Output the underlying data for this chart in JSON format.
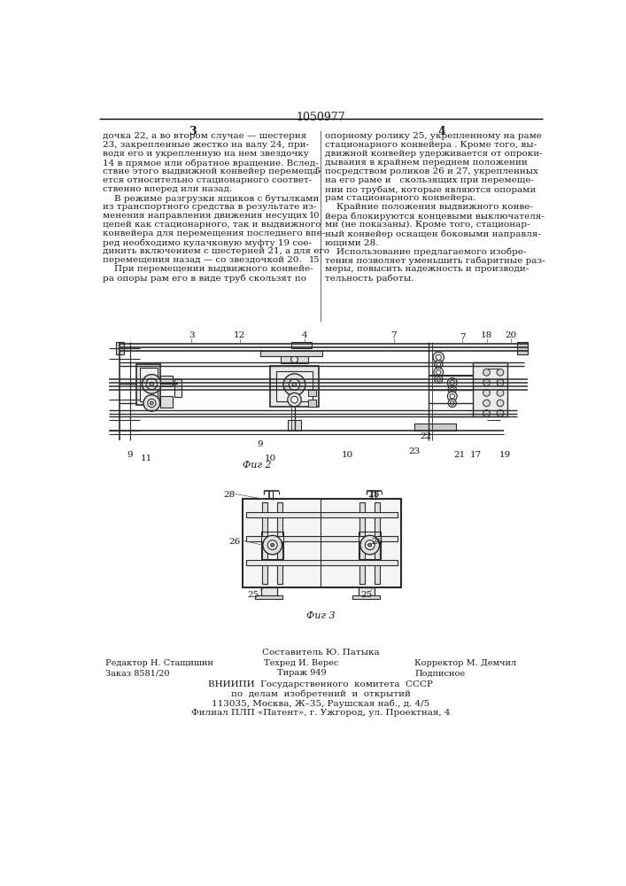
{
  "page_number": "1050977",
  "col_left_number": "3",
  "col_right_number": "4",
  "background_color": "#ffffff",
  "text_color": "#1a1a1a",
  "font_size_body": 7.5,
  "font_size_header": 9,
  "col_left_text": "дочка 22, а во втором случае — шестерня\n23, закрепленные жестко на валу 24, при-\nводя его и укрепленную на нем звездочку\n14 в прямое или обратное вращение. Вслед-\nствие этого выдвижной конвейер перемеща-\nется относительно стационарного соответ-\nственно вперед или назад.\n    В режиме разгрузки ящиков с бутылками\nиз транспортного средства в результате из-\nменения направления движения несущих\nцепей как стационарного, так и выдвижного\nконвейера для перемещения последнего впе-\nред необходимо кулачковую муфту 19 сое-\nдинить включением с шестерней 21, а для его\nперемещения назад — со звездочкой 20.\n    При перемещении выдвижного конвейе-\nра опоры рам его в виде труб скользят по",
  "col_right_text": "опорному ролику 25, укрепленному на раме\nстационарного конвейера . Кроме того, вы-\nдвижной конвейер удерживается от опроки-\nдывания в крайнем переднем положении\nпосредством роликов 26 и 27, укрепленных\nна его раме и   скользящих при перемеще-\nнии по трубам, которые являются опорами\nрам стационарного конвейера.\n    Крайние положения выдвижного конве-\nйера блокируются концевыми выключателя-\nми (не показаны). Кроме того, стационар-\nный конвейер оснащен боковыми направля-\nющими 28.\n    Использование предлагаемого изобре-\nтения позволяет уменьшить габаритные раз-\nмеры, повысить надежность и производи-\nтельность работы.",
  "fig2_label": "Фиг 2",
  "fig3_label": "Фиг 3",
  "footer_composer": "Составитель Ю. Патыка",
  "footer_editor": "Редактор Н. Стащишин",
  "footer_tech": "Техред И. Верес",
  "footer_corrector": "Корректор М. Демчил",
  "footer_order": "Заказ 8581/20",
  "footer_edition": "Тираж 949",
  "footer_subscription": "Подписное",
  "footer_org1": "ВНИИПИ  Государственного  комитета  СССР",
  "footer_org2": "по  делам  изобретений  и  открытий",
  "footer_address": "113035, Москва, Ж–35, Раушская наб., д. 4/5",
  "footer_branch": "Филиал ПЛП «Патент», г. Ужгород, ул. Проектная, 4"
}
